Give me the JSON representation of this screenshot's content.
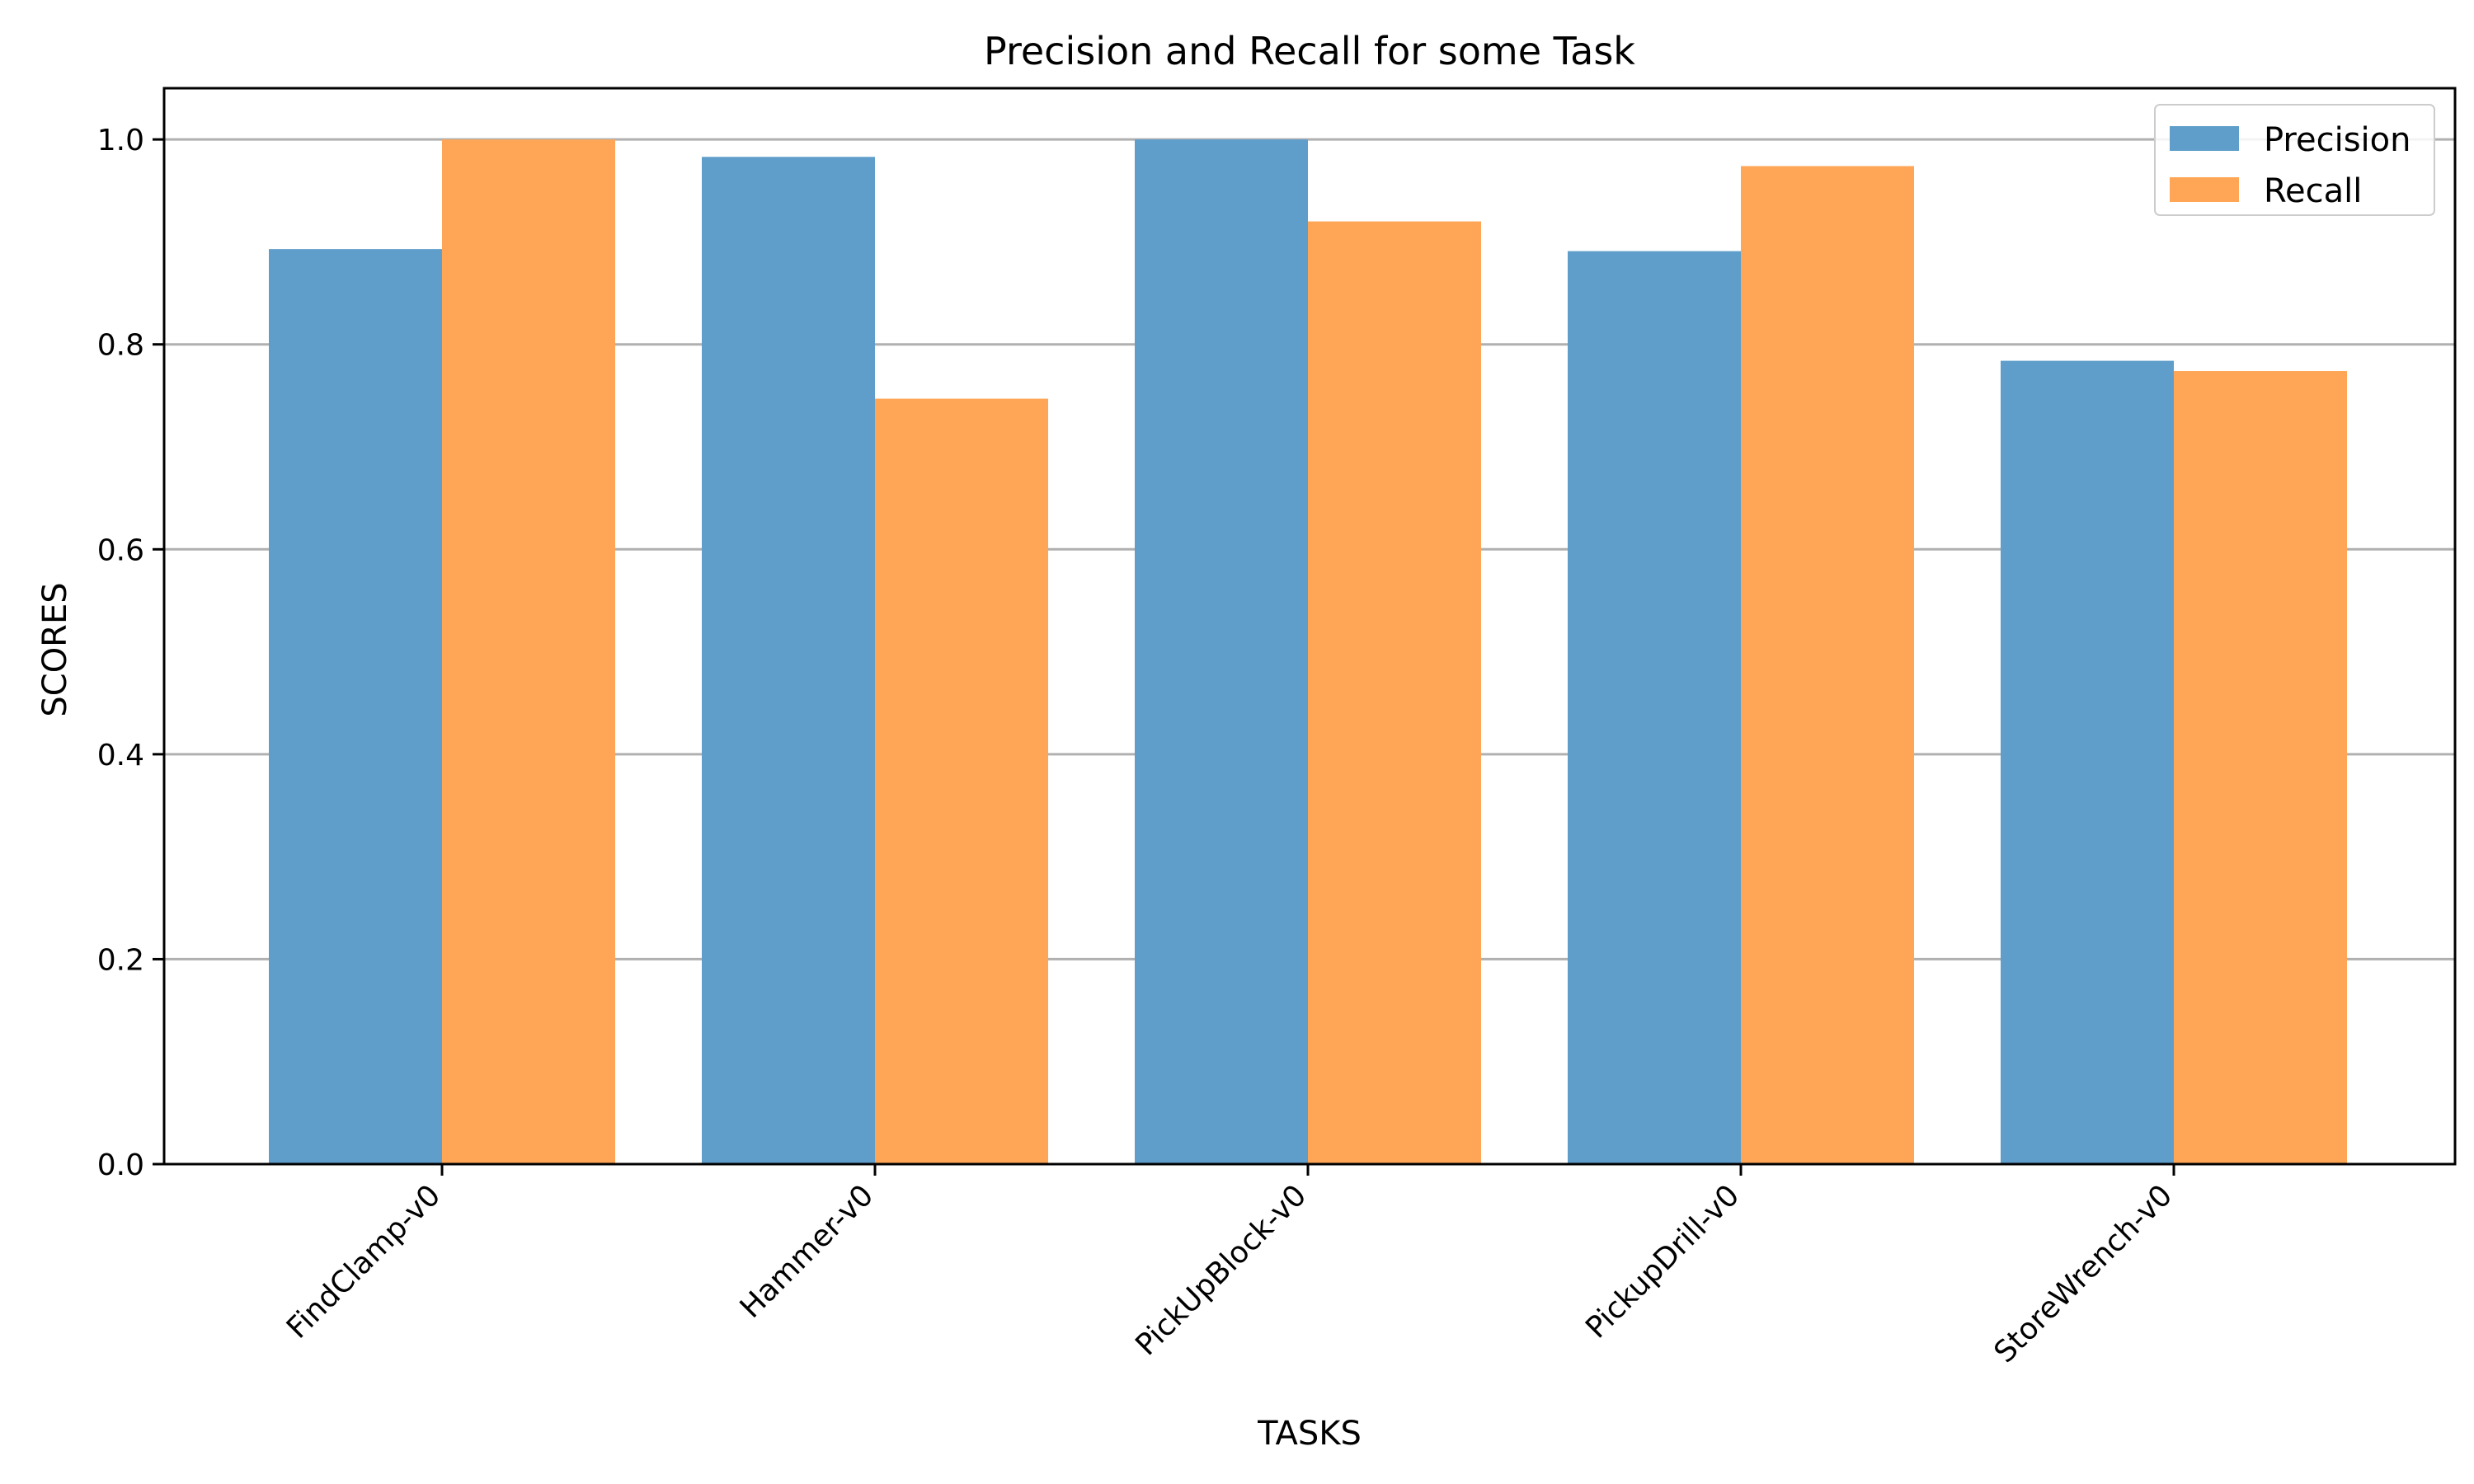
{
  "chart_data": {
    "type": "bar",
    "title": "Precision and Recall for some Task",
    "xlabel": "TASKS",
    "ylabel": "SCORES",
    "categories": [
      "FindClamp-v0",
      "Hammer-v0",
      "PickUpBlock-v0",
      "PickupDrill-v0",
      "StoreWrench-v0"
    ],
    "series": [
      {
        "name": "Precision",
        "color": "#5f9ecb",
        "values": [
          0.893,
          0.983,
          1.0,
          0.891,
          0.784
        ]
      },
      {
        "name": "Recall",
        "color": "#fea656",
        "values": [
          1.0,
          0.747,
          0.92,
          0.974,
          0.774
        ]
      }
    ],
    "ylim": [
      0,
      1.05
    ],
    "yticks": [
      0.0,
      0.2,
      0.4,
      0.6,
      0.8,
      1.0
    ],
    "ytick_labels": [
      "0.0",
      "0.2",
      "0.4",
      "0.6",
      "0.8",
      "1.0"
    ],
    "grid": "y",
    "legend_position": "top-right",
    "xtick_rotation": "45"
  }
}
